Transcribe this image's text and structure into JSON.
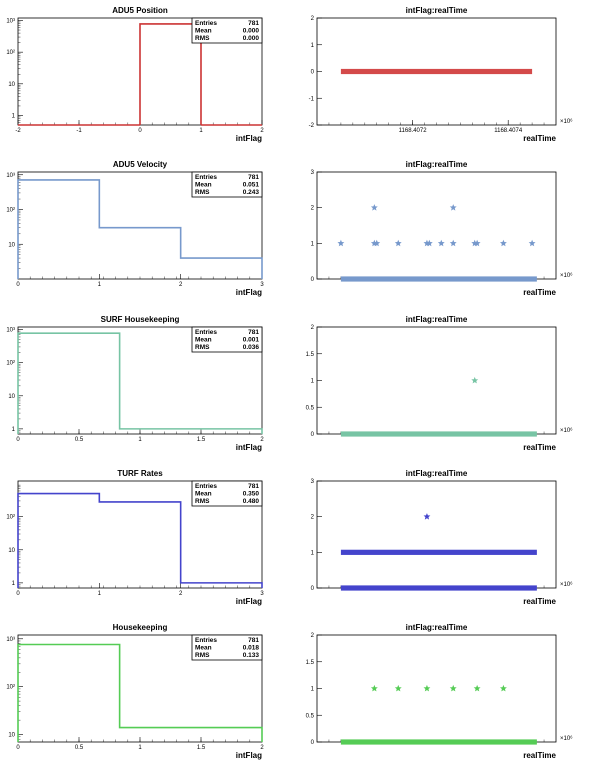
{
  "chart_data": [
    {
      "type": "histogram",
      "title": "ADU5 Position",
      "xlabel": "intFlag",
      "xlim": [
        -2,
        2
      ],
      "ylog": true,
      "ylim": [
        0.5,
        1200
      ],
      "xticks": [
        -2,
        -1,
        0,
        1,
        2
      ],
      "yticks": [
        {
          "v": 1,
          "label": "1"
        },
        {
          "v": 10,
          "label": "10"
        },
        {
          "v": 100,
          "label": "10²"
        },
        {
          "v": 1000,
          "label": "10³"
        }
      ],
      "bin_edges": [
        0,
        1
      ],
      "counts": [
        781
      ],
      "color": "#cc3333",
      "stats": [
        {
          "name": "Entries",
          "value": "781"
        },
        {
          "name": "Mean",
          "value": "0.000"
        },
        {
          "name": "RMS",
          "value": "0.000"
        }
      ]
    },
    {
      "type": "scatter",
      "title": "intFlag:realTime",
      "xlabel": "realTime",
      "xlim": [
        1168.407,
        1168.4075
      ],
      "ylim": [
        -2,
        2
      ],
      "xticks": [
        {
          "v": 1168.4072,
          "label": "1168.4072"
        },
        {
          "v": 1168.4074,
          "label": "1168.4074"
        }
      ],
      "yticks": [
        {
          "v": -2,
          "label": "-2"
        },
        {
          "v": -1,
          "label": "-1"
        },
        {
          "v": 0,
          "label": "0"
        },
        {
          "v": 1,
          "label": "1"
        },
        {
          "v": 2,
          "label": "2"
        }
      ],
      "multiplier": "×10⁶",
      "dense_rows": [
        {
          "y": 0,
          "x_from": 1168.40705,
          "x_to": 1168.40745
        }
      ],
      "points": [],
      "color": "#d44a4a"
    },
    {
      "type": "histogram",
      "title": "ADU5 Velocity",
      "xlabel": "intFlag",
      "xlim": [
        0,
        3
      ],
      "ylog": true,
      "ylim": [
        1,
        1200
      ],
      "xticks": [
        0,
        1,
        2,
        3
      ],
      "yticks": [
        {
          "v": 10,
          "label": "10"
        },
        {
          "v": 100,
          "label": "10²"
        },
        {
          "v": 1000,
          "label": "10³"
        }
      ],
      "bin_edges": [
        0,
        1,
        2,
        3
      ],
      "counts": [
        710,
        30,
        4
      ],
      "color": "#7799cc",
      "stats": [
        {
          "name": "Entries",
          "value": "781"
        },
        {
          "name": "Mean",
          "value": "0.051"
        },
        {
          "name": "RMS",
          "value": "0.243"
        }
      ]
    },
    {
      "type": "scatter",
      "title": "intFlag:realTime",
      "xlabel": "realTime",
      "xlim": [
        0,
        100
      ],
      "ylim": [
        0,
        3
      ],
      "xticks": [],
      "yticks": [
        {
          "v": 0,
          "label": "0"
        },
        {
          "v": 1,
          "label": "1"
        },
        {
          "v": 2,
          "label": "2"
        },
        {
          "v": 3,
          "label": "3"
        }
      ],
      "multiplier": "×10⁶",
      "dense_rows": [
        {
          "y": 0,
          "x_from": 10,
          "x_to": 92
        }
      ],
      "points": [
        {
          "x": 10,
          "y": 1
        },
        {
          "x": 24,
          "y": 1
        },
        {
          "x": 24,
          "y": 2
        },
        {
          "x": 25,
          "y": 1
        },
        {
          "x": 34,
          "y": 1
        },
        {
          "x": 46,
          "y": 1
        },
        {
          "x": 47,
          "y": 1
        },
        {
          "x": 52,
          "y": 1
        },
        {
          "x": 57,
          "y": 1
        },
        {
          "x": 57,
          "y": 2
        },
        {
          "x": 66,
          "y": 1
        },
        {
          "x": 67,
          "y": 1
        },
        {
          "x": 78,
          "y": 1
        },
        {
          "x": 90,
          "y": 1
        }
      ],
      "color": "#7799cc"
    },
    {
      "type": "histogram",
      "title": "SURF Housekeeping",
      "xlabel": "intFlag",
      "xlim": [
        0,
        2
      ],
      "ylog": true,
      "ylim": [
        0.7,
        1200
      ],
      "xticks": [
        {
          "v": 0,
          "label": "0"
        },
        {
          "v": 0.5,
          "label": "0.5"
        },
        {
          "v": 1,
          "label": "1"
        },
        {
          "v": 1.5,
          "label": "1.5"
        },
        {
          "v": 2,
          "label": "2"
        }
      ],
      "yticks": [
        {
          "v": 1,
          "label": "1"
        },
        {
          "v": 10,
          "label": "10"
        },
        {
          "v": 100,
          "label": "10²"
        },
        {
          "v": 1000,
          "label": "10³"
        }
      ],
      "bin_edges": [
        0,
        0.833,
        2
      ],
      "counts": [
        780,
        1
      ],
      "color": "#77c4a4",
      "stats": [
        {
          "name": "Entries",
          "value": "781"
        },
        {
          "name": "Mean",
          "value": "0.001"
        },
        {
          "name": "RMS",
          "value": "0.036"
        }
      ]
    },
    {
      "type": "scatter",
      "title": "intFlag:realTime",
      "xlabel": "realTime",
      "xlim": [
        0,
        100
      ],
      "ylim": [
        0,
        2
      ],
      "xticks": [],
      "yticks": [
        {
          "v": 0,
          "label": "0"
        },
        {
          "v": 0.5,
          "label": "0.5"
        },
        {
          "v": 1,
          "label": "1"
        },
        {
          "v": 1.5,
          "label": "1.5"
        },
        {
          "v": 2,
          "label": "2"
        }
      ],
      "multiplier": "×10⁶",
      "dense_rows": [
        {
          "y": 0,
          "x_from": 10,
          "x_to": 92
        }
      ],
      "points": [
        {
          "x": 66,
          "y": 1
        }
      ],
      "color": "#77c4a4"
    },
    {
      "type": "histogram",
      "title": "TURF Rates",
      "xlabel": "intFlag",
      "xlim": [
        0,
        3
      ],
      "ylog": true,
      "ylim": [
        0.7,
        1200
      ],
      "xticks": [
        0,
        1,
        2,
        3
      ],
      "yticks": [
        {
          "v": 1,
          "label": "1"
        },
        {
          "v": 10,
          "label": "10"
        },
        {
          "v": 100,
          "label": "10²"
        }
      ],
      "bin_edges": [
        0,
        1,
        2,
        3
      ],
      "counts": [
        500,
        280,
        1
      ],
      "color": "#4444cc",
      "stats": [
        {
          "name": "Entries",
          "value": "781"
        },
        {
          "name": "Mean",
          "value": "0.350"
        },
        {
          "name": "RMS",
          "value": "0.480"
        }
      ]
    },
    {
      "type": "scatter",
      "title": "intFlag:realTime",
      "xlabel": "realTime",
      "xlim": [
        0,
        100
      ],
      "ylim": [
        0,
        3
      ],
      "xticks": [],
      "yticks": [
        {
          "v": 0,
          "label": "0"
        },
        {
          "v": 1,
          "label": "1"
        },
        {
          "v": 2,
          "label": "2"
        },
        {
          "v": 3,
          "label": "3"
        }
      ],
      "multiplier": "×10⁶",
      "dense_rows": [
        {
          "y": 0,
          "x_from": 10,
          "x_to": 92
        },
        {
          "y": 1,
          "x_from": 10,
          "x_to": 92
        }
      ],
      "points": [
        {
          "x": 46,
          "y": 2
        }
      ],
      "color": "#4444cc"
    },
    {
      "type": "histogram",
      "title": "Housekeeping",
      "xlabel": "intFlag",
      "xlim": [
        0,
        2
      ],
      "ylog": true,
      "ylim": [
        7,
        1200
      ],
      "xticks": [
        {
          "v": 0,
          "label": "0"
        },
        {
          "v": 0.5,
          "label": "0.5"
        },
        {
          "v": 1,
          "label": "1"
        },
        {
          "v": 1.5,
          "label": "1.5"
        },
        {
          "v": 2,
          "label": "2"
        }
      ],
      "yticks": [
        {
          "v": 10,
          "label": "10"
        },
        {
          "v": 100,
          "label": "10²"
        },
        {
          "v": 1000,
          "label": "10³"
        }
      ],
      "bin_edges": [
        0,
        0.833,
        2
      ],
      "counts": [
        760,
        14
      ],
      "color": "#55cc55",
      "stats": [
        {
          "name": "Entries",
          "value": "781"
        },
        {
          "name": "Mean",
          "value": "0.018"
        },
        {
          "name": "RMS",
          "value": "0.133"
        }
      ]
    },
    {
      "type": "scatter",
      "title": "intFlag:realTime",
      "xlabel": "realTime",
      "xlim": [
        0,
        100
      ],
      "ylim": [
        0,
        2
      ],
      "xticks": [],
      "yticks": [
        {
          "v": 0,
          "label": "0"
        },
        {
          "v": 0.5,
          "label": "0.5"
        },
        {
          "v": 1,
          "label": "1"
        },
        {
          "v": 1.5,
          "label": "1.5"
        },
        {
          "v": 2,
          "label": "2"
        }
      ],
      "multiplier": "×10⁶",
      "dense_rows": [
        {
          "y": 0,
          "x_from": 10,
          "x_to": 92
        }
      ],
      "points": [
        {
          "x": 24,
          "y": 1
        },
        {
          "x": 34,
          "y": 1
        },
        {
          "x": 46,
          "y": 1
        },
        {
          "x": 57,
          "y": 1
        },
        {
          "x": 67,
          "y": 1
        },
        {
          "x": 78,
          "y": 1
        }
      ],
      "color": "#55cc55"
    }
  ]
}
